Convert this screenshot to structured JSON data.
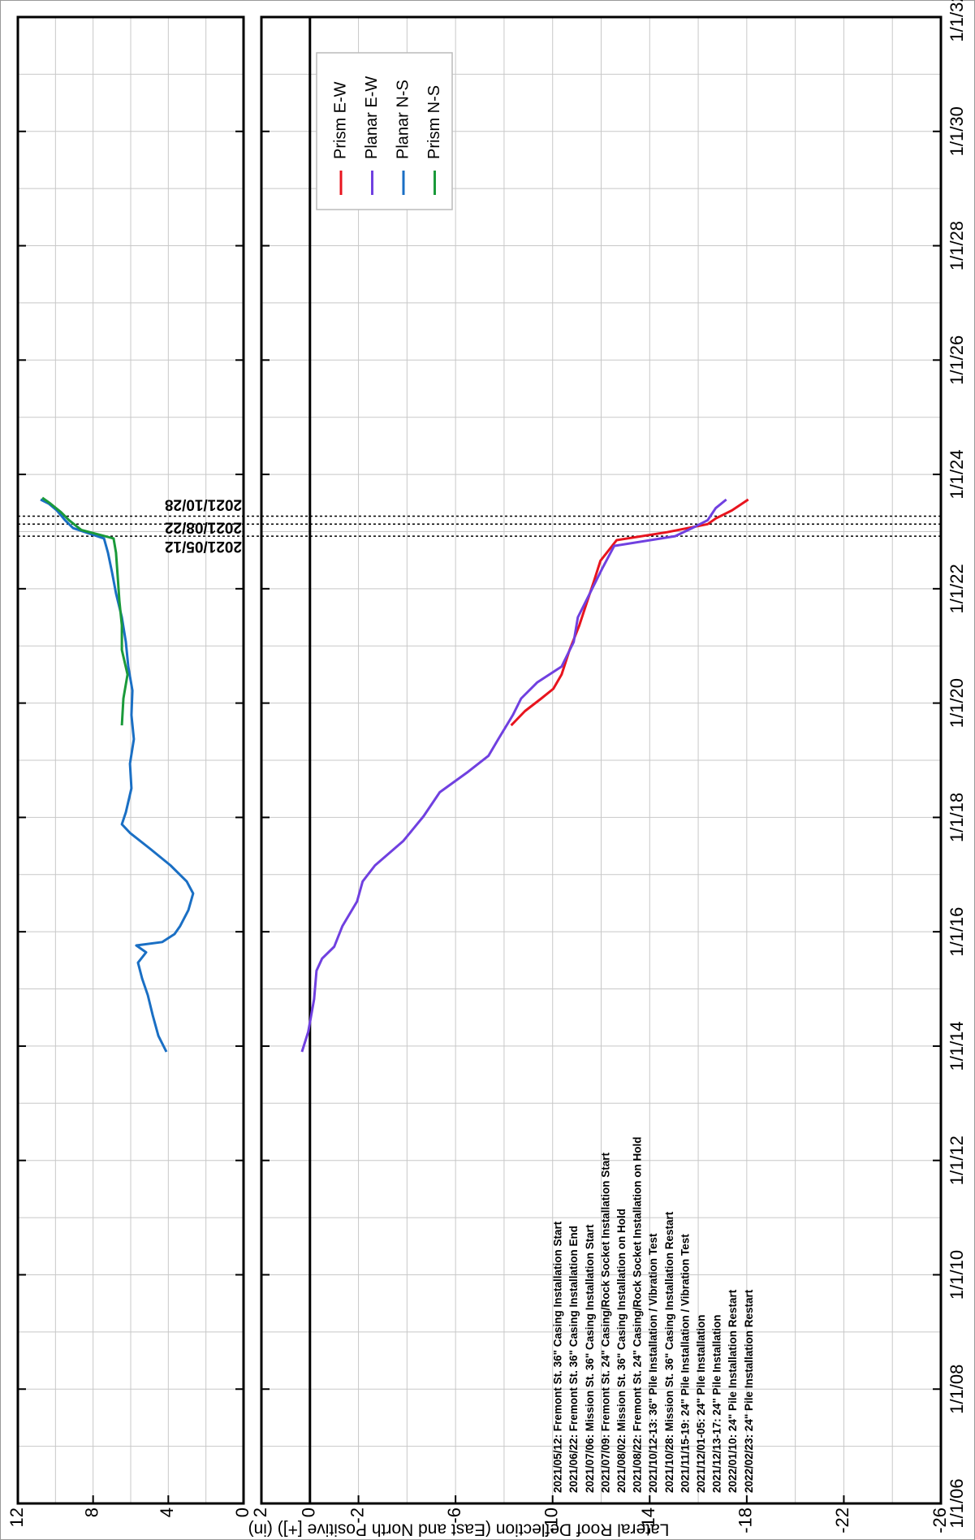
{
  "chart_data": {
    "type": "line",
    "ylabel": "Lateral Roof Deflection (East and North Positive [+]) (in)",
    "xlim": [
      2006,
      2032
    ],
    "xticks": [
      {
        "value": 2006,
        "label": "1/1/06"
      },
      {
        "value": 2008,
        "label": "1/1/08"
      },
      {
        "value": 2010,
        "label": "1/1/10"
      },
      {
        "value": 2012,
        "label": "1/1/12"
      },
      {
        "value": 2014,
        "label": "1/1/14"
      },
      {
        "value": 2016,
        "label": "1/1/16"
      },
      {
        "value": 2018,
        "label": "1/1/18"
      },
      {
        "value": 2020,
        "label": "1/1/20"
      },
      {
        "value": 2022,
        "label": "1/1/22"
      },
      {
        "value": 2024,
        "label": "1/1/24"
      },
      {
        "value": 2026,
        "label": "1/1/26"
      },
      {
        "value": 2028,
        "label": "1/1/28"
      },
      {
        "value": 2030,
        "label": "1/1/30"
      },
      {
        "value": 2032,
        "label": "1/1/32"
      }
    ],
    "grid_xticks": [
      2006,
      2007,
      2008,
      2009,
      2010,
      2011,
      2012,
      2013,
      2014,
      2015,
      2016,
      2017,
      2018,
      2019,
      2020,
      2021,
      2022,
      2023,
      2024,
      2025,
      2026,
      2027,
      2028,
      2029,
      2030,
      2031,
      2032
    ],
    "grid": true,
    "events": [
      {
        "x": 2022.92,
        "label": "2021/05/12"
      },
      {
        "x": 2023.13,
        "label": "2021/08/22"
      },
      {
        "x": 2023.27,
        "label": "2021/10/28"
      }
    ],
    "annotations": [
      "2021/05/12: Fremont St. 36\" Casing Installation Start",
      "2021/06/22: Fremont St. 36\" Casing Installation End",
      "2021/07/06: Mission St. 36\" Casing Installation Start",
      "2021/07/09: Fremont St. 24\" Casing/Rock Socket Installation Start",
      "2021/08/02: Mission St. 36\" Casing Installation on Hold",
      "2021/08/22: Fremont St. 24\" Casing/Rock Socket Installation on Hold",
      "2021/10/12-13: 36\" Pile Installation / Vibration Test",
      "2021/10/28: Mission St. 36\" Casing Installation Restart",
      "2021/11/15-19: 24\" Pile Installation / Vibration Test",
      "2021/12/01-05: 24\" Pile Installation",
      "2021/12/13-17: 24\" Pile Installation",
      "2022/01/10: 24\" Pile Installation Restart",
      "2022/02/23: 24\" Pile Installation Restart"
    ],
    "legend": "upper right",
    "panels": [
      {
        "ylim": [
          0,
          12
        ],
        "yticks": [
          0,
          4,
          8,
          12
        ],
        "grid_yticks": [
          0,
          2,
          4,
          6,
          8,
          10,
          12
        ],
        "series": [
          {
            "name": "Planar N-S",
            "color": "#1a6fc4",
            "x": [
              2013.9,
              2014.18,
              2014.54,
              2014.89,
              2015.18,
              2015.46,
              2015.64,
              2015.76,
              2015.82,
              2015.96,
              2016.1,
              2016.38,
              2016.67,
              2016.88,
              2017.16,
              2017.45,
              2017.73,
              2017.88,
              2018.09,
              2018.51,
              2018.94,
              2019.37,
              2019.79,
              2020.22,
              2020.64,
              2021.07,
              2021.5,
              2021.92,
              2022.28,
              2022.63,
              2022.88,
              2023.06,
              2023.2,
              2023.37,
              2023.49,
              2023.56
            ],
            "values": [
              4.1,
              4.53,
              4.83,
              5.09,
              5.39,
              5.61,
              5.18,
              5.7,
              4.32,
              3.67,
              3.37,
              2.93,
              2.68,
              3.02,
              3.88,
              4.96,
              6.04,
              6.47,
              6.26,
              5.96,
              6.04,
              5.83,
              5.96,
              5.91,
              6.13,
              6.26,
              6.47,
              6.78,
              6.99,
              7.21,
              7.42,
              9.06,
              9.49,
              9.93,
              10.36,
              10.79
            ]
          },
          {
            "name": "Prism N-S",
            "color": "#1a9a3a",
            "x": [
              2019.61,
              2020.08,
              2020.5,
              2020.93,
              2021.36,
              2021.78,
              2022.21,
              2022.63,
              2022.88,
              2023.03,
              2023.2,
              2023.34,
              2023.49,
              2023.59
            ],
            "values": [
              6.47,
              6.39,
              6.17,
              6.47,
              6.47,
              6.6,
              6.69,
              6.78,
              6.91,
              8.63,
              9.28,
              9.71,
              10.27,
              10.7
            ]
          }
        ]
      },
      {
        "ylim": [
          -26,
          2
        ],
        "yticks": [
          2,
          0,
          -2,
          -6,
          -10,
          -14,
          -18,
          -22,
          -26
        ],
        "grid_yticks": [
          2,
          0,
          -2,
          -4,
          -6,
          -8,
          -10,
          -12,
          -14,
          -16,
          -18,
          -20,
          -22,
          -24,
          -26
        ],
        "zero_line": true,
        "series": [
          {
            "name": "Prism E-W",
            "color": "#e8141e",
            "x": [
              2019.61,
              2019.86,
              2020.08,
              2020.25,
              2020.5,
              2020.93,
              2021.36,
              2021.71,
              2022.14,
              2022.49,
              2022.85,
              2022.99,
              2023.13,
              2023.23,
              2023.37,
              2023.56
            ],
            "values": [
              -8.29,
              -8.86,
              -9.53,
              -10.03,
              -10.37,
              -10.7,
              -11.1,
              -11.37,
              -11.71,
              -11.97,
              -12.64,
              -14.72,
              -16.39,
              -16.72,
              -17.39,
              -18.06
            ]
          },
          {
            "name": "Planar E-W",
            "color": "#7040e0",
            "x": [
              2013.9,
              2014.25,
              2014.82,
              2015.32,
              2015.53,
              2015.74,
              2016.1,
              2016.53,
              2016.88,
              2017.16,
              2017.59,
              2018.02,
              2018.44,
              2018.8,
              2019.08,
              2019.37,
              2019.79,
              2020.08,
              2020.36,
              2020.64,
              2021.07,
              2021.5,
              2021.78,
              2022.35,
              2022.75,
              2022.92,
              2023.09,
              2023.2,
              2023.41,
              2023.56
            ],
            "values": [
              0.33,
              0.07,
              -0.17,
              -0.27,
              -0.5,
              -1.0,
              -1.34,
              -1.94,
              -2.17,
              -2.68,
              -3.85,
              -4.68,
              -5.35,
              -6.52,
              -7.36,
              -7.76,
              -8.36,
              -8.7,
              -9.36,
              -10.37,
              -10.87,
              -11.04,
              -11.37,
              -12.04,
              -12.54,
              -15.05,
              -15.89,
              -16.39,
              -16.72,
              -17.16
            ]
          }
        ]
      }
    ]
  }
}
